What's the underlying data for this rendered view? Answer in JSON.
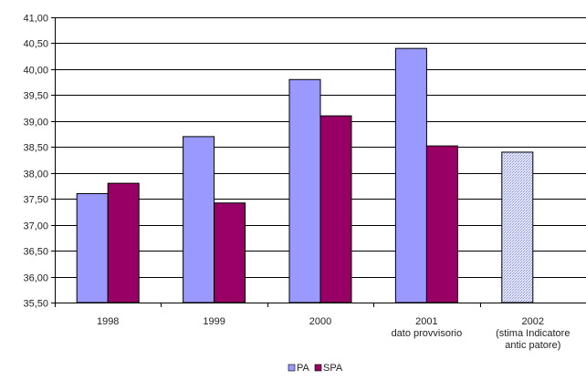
{
  "chart_data": {
    "type": "bar",
    "categories": [
      [
        "1998"
      ],
      [
        "1999"
      ],
      [
        "2000"
      ],
      [
        "2001",
        "dato provvisorio"
      ],
      [
        "2002",
        "(stima Indicatore",
        "antic patore)"
      ]
    ],
    "series": [
      {
        "name": "PA",
        "values": [
          37.6,
          38.7,
          39.8,
          40.4,
          38.4
        ]
      },
      {
        "name": "SPA",
        "values": [
          37.8,
          37.42,
          39.1,
          38.52,
          null
        ]
      }
    ],
    "ylim": [
      35.5,
      41.0
    ],
    "yticks": [
      "35,50",
      "36,00",
      "36,50",
      "37,00",
      "37,50",
      "38,00",
      "38,50",
      "39,00",
      "39,50",
      "40,00",
      "40,50",
      "41,00"
    ],
    "ytick_values": [
      35.5,
      36.0,
      36.5,
      37.0,
      37.5,
      38.0,
      38.5,
      39.0,
      39.5,
      40.0,
      40.5,
      41.0
    ],
    "grid": true,
    "legend_position": "bottom-center",
    "colors": {
      "PA": "#9999ff",
      "SPA": "#990066",
      "estimate_fill": "#c8d0ff",
      "grid": "#000000",
      "axis": "#000000"
    },
    "estimate_category_index": 4
  }
}
